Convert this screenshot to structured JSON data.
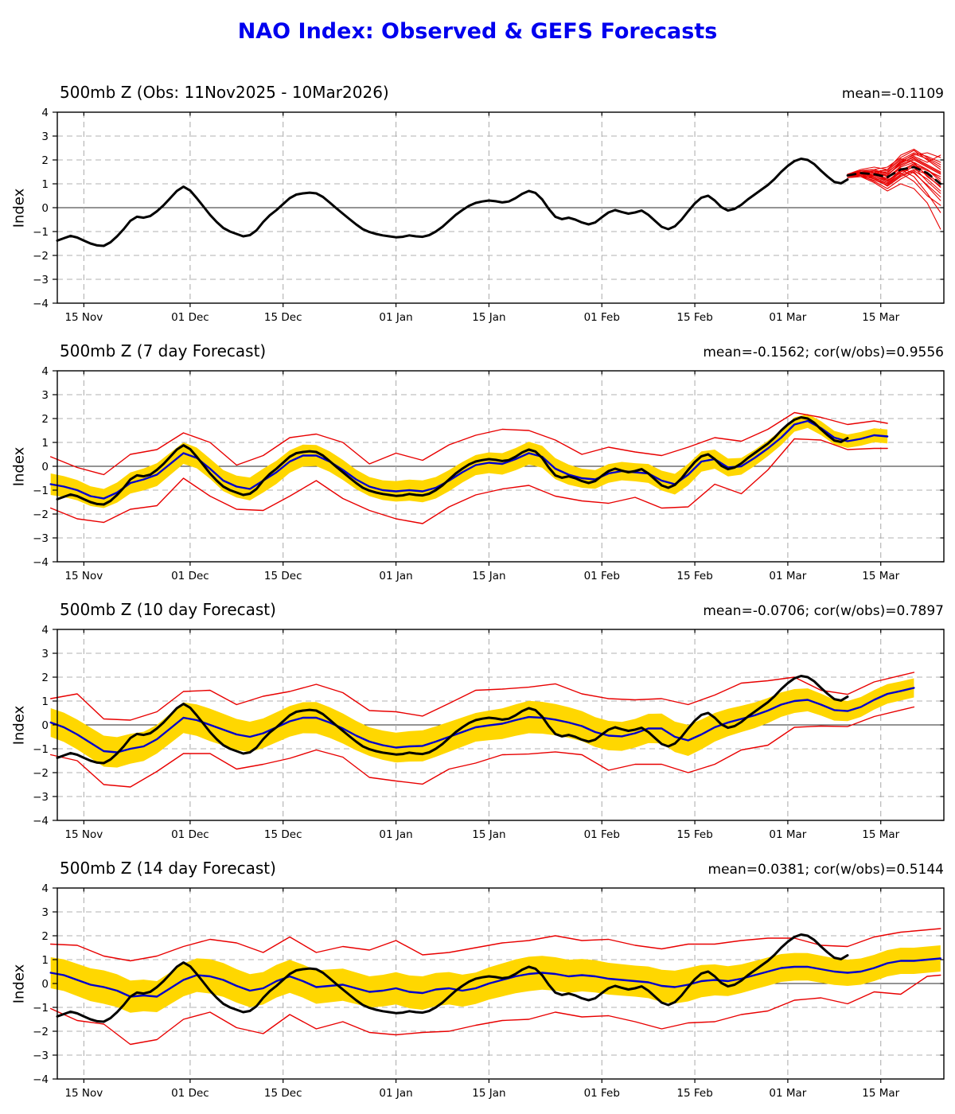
{
  "title": "NAO Index: Observed & GEFS Forecasts",
  "colors": {
    "title_blue": "#0000ee",
    "observed_black": "#000000",
    "forecast_mean_blue": "#0000cc",
    "spread_band_yellow": "#ffd700",
    "envelope_red": "#e80000",
    "grid_gray": "#b0b0b0",
    "zero_line": "#2a2a2a"
  },
  "axes": {
    "ylabel": "Index",
    "ylim": [
      -4,
      4
    ],
    "yticks": [
      {
        "v": 4,
        "label": "4"
      },
      {
        "v": 3,
        "label": "3"
      },
      {
        "v": 2,
        "label": "2"
      },
      {
        "v": 1,
        "label": "1"
      },
      {
        "v": 0,
        "label": "0"
      },
      {
        "v": -1,
        "label": "−1"
      },
      {
        "v": -2,
        "label": "−2"
      },
      {
        "v": -3,
        "label": "−3"
      },
      {
        "v": -4,
        "label": "−4"
      }
    ],
    "xlim": [
      0,
      133.5
    ],
    "x_unit": "days since 11 Nov 2025",
    "xticks": [
      {
        "day": 4,
        "label": "15 Nov"
      },
      {
        "day": 20,
        "label": "01 Dec"
      },
      {
        "day": 34,
        "label": "15 Dec"
      },
      {
        "day": 51,
        "label": "01 Jan"
      },
      {
        "day": 65,
        "label": "15 Jan"
      },
      {
        "day": 82,
        "label": "01 Feb"
      },
      {
        "day": 96,
        "label": "15 Feb"
      },
      {
        "day": 110,
        "label": "01 Mar"
      },
      {
        "day": 124,
        "label": "15 Mar"
      }
    ],
    "grid": "dashed"
  },
  "chart_data": {
    "type": "line",
    "observed": {
      "name": "Observed NAO index (black)",
      "x_start": 0,
      "x_step": 1,
      "values": [
        -1.38,
        -1.28,
        -1.18,
        -1.25,
        -1.38,
        -1.5,
        -1.58,
        -1.6,
        -1.45,
        -1.2,
        -0.9,
        -0.55,
        -0.38,
        -0.42,
        -0.35,
        -0.15,
        0.1,
        0.4,
        0.7,
        0.88,
        0.72,
        0.4,
        0.05,
        -0.3,
        -0.6,
        -0.85,
        -1.0,
        -1.1,
        -1.2,
        -1.15,
        -0.95,
        -0.6,
        -0.32,
        -0.1,
        0.15,
        0.4,
        0.55,
        0.6,
        0.63,
        0.6,
        0.45,
        0.22,
        -0.02,
        -0.25,
        -0.48,
        -0.7,
        -0.9,
        -1.02,
        -1.1,
        -1.16,
        -1.2,
        -1.24,
        -1.22,
        -1.16,
        -1.2,
        -1.22,
        -1.15,
        -1.0,
        -0.8,
        -0.55,
        -0.3,
        -0.1,
        0.08,
        0.2,
        0.26,
        0.3,
        0.27,
        0.22,
        0.26,
        0.4,
        0.58,
        0.7,
        0.62,
        0.35,
        -0.05,
        -0.38,
        -0.48,
        -0.42,
        -0.5,
        -0.62,
        -0.7,
        -0.62,
        -0.4,
        -0.2,
        -0.1,
        -0.18,
        -0.25,
        -0.2,
        -0.12,
        -0.3,
        -0.55,
        -0.8,
        -0.9,
        -0.78,
        -0.5,
        -0.15,
        0.18,
        0.42,
        0.5,
        0.3,
        0.02,
        -0.12,
        -0.05,
        0.12,
        0.35,
        0.55,
        0.75,
        0.95,
        1.2,
        1.5,
        1.75,
        1.95,
        2.05,
        2.0,
        1.82,
        1.55,
        1.3,
        1.08,
        1.02,
        1.18
      ]
    },
    "panels": [
      {
        "title": "500mb Z (Obs: 11Nov2025 - 10Mar2026)",
        "stats": "mean=-0.1109",
        "ensemble_mean_dashed": {
          "x_start": 119,
          "x_step": 2,
          "values": [
            1.35,
            1.45,
            1.4,
            1.28,
            1.6,
            1.7,
            1.45,
            1.0
          ]
        },
        "ensemble_members": {
          "x_start": 119,
          "x_step": 2,
          "series": [
            [
              1.35,
              1.5,
              1.45,
              1.5,
              1.9,
              2.1,
              1.8,
              1.5
            ],
            [
              1.3,
              1.4,
              1.2,
              1.0,
              1.5,
              1.7,
              1.1,
              0.6
            ],
            [
              1.4,
              1.55,
              1.6,
              1.7,
              2.1,
              2.4,
              2.0,
              1.6
            ],
            [
              1.3,
              1.35,
              1.1,
              0.8,
              1.2,
              1.5,
              0.9,
              0.3
            ],
            [
              1.35,
              1.45,
              1.5,
              1.3,
              1.7,
              1.9,
              1.6,
              1.2
            ],
            [
              1.4,
              1.5,
              1.3,
              1.1,
              1.6,
              1.3,
              0.6,
              -0.2
            ],
            [
              1.3,
              1.3,
              1.05,
              0.7,
              1.0,
              0.8,
              0.2,
              -0.9
            ],
            [
              1.35,
              1.5,
              1.55,
              1.45,
              1.95,
              2.2,
              2.3,
              2.1
            ],
            [
              1.4,
              1.6,
              1.7,
              1.6,
              2.2,
              2.45,
              2.1,
              1.8
            ],
            [
              1.25,
              1.3,
              1.15,
              0.95,
              1.35,
              1.6,
              1.4,
              1.0
            ],
            [
              1.35,
              1.4,
              1.35,
              1.2,
              1.75,
              2.0,
              1.7,
              1.4
            ],
            [
              1.3,
              1.45,
              1.4,
              1.15,
              1.45,
              1.1,
              0.5,
              0.1
            ],
            [
              1.4,
              1.5,
              1.45,
              1.35,
              1.85,
              2.15,
              1.9,
              2.2
            ],
            [
              1.35,
              1.35,
              1.2,
              1.0,
              1.4,
              1.75,
              1.55,
              1.3
            ],
            [
              1.3,
              1.4,
              1.5,
              1.55,
              2.0,
              2.3,
              2.15,
              1.9
            ],
            [
              1.4,
              1.45,
              1.25,
              0.9,
              1.3,
              1.55,
              1.2,
              0.7
            ],
            [
              1.35,
              1.55,
              1.6,
              1.4,
              1.8,
              2.05,
              1.75,
              1.45
            ],
            [
              1.3,
              1.35,
              1.25,
              1.05,
              1.55,
              1.85,
              1.35,
              0.85
            ],
            [
              1.4,
              1.5,
              1.35,
              1.25,
              1.65,
              1.45,
              0.95,
              0.45
            ],
            [
              1.35,
              1.45,
              1.55,
              1.35,
              1.9,
              2.25,
              2.05,
              1.7
            ],
            [
              1.3,
              1.4,
              1.3,
              1.15,
              1.5,
              1.8,
              1.6,
              1.1
            ],
            [
              1.4,
              1.55,
              1.5,
              1.6,
              2.05,
              1.9,
              1.3,
              0.9
            ]
          ]
        }
      },
      {
        "title": "500mb Z (7 day Forecast)",
        "stats": "mean=-0.1562; cor(w/obs)=0.9556",
        "mean": {
          "x_start": -1,
          "x_step": 2,
          "values": [
            -0.75,
            -0.85,
            -1.0,
            -1.25,
            -1.35,
            -1.1,
            -0.7,
            -0.55,
            -0.35,
            0.1,
            0.55,
            0.35,
            -0.1,
            -0.6,
            -0.85,
            -0.95,
            -0.6,
            -0.25,
            0.2,
            0.45,
            0.45,
            0.2,
            -0.15,
            -0.55,
            -0.85,
            -1.0,
            -1.05,
            -1.0,
            -1.05,
            -0.9,
            -0.6,
            -0.25,
            0.05,
            0.15,
            0.1,
            0.3,
            0.55,
            0.4,
            -0.1,
            -0.35,
            -0.5,
            -0.55,
            -0.3,
            -0.2,
            -0.25,
            -0.3,
            -0.6,
            -0.75,
            -0.35,
            0.2,
            0.3,
            -0.05,
            0.0,
            0.35,
            0.75,
            1.2,
            1.75,
            1.9,
            1.6,
            1.2,
            1.05,
            1.15,
            1.3,
            1.25
          ]
        },
        "band_hw": {
          "x_start": -1,
          "x_step": 8,
          "values": [
            0.45,
            0.4,
            0.48,
            0.42,
            0.5,
            0.44,
            0.4,
            0.46,
            0.42,
            0.48,
            0.4,
            0.38,
            0.45,
            0.35,
            0.3,
            0.28,
            0.3
          ]
        },
        "env_up": {
          "x_start": -1,
          "x_step": 4,
          "values": [
            1.15,
            0.95,
            1.0,
            1.2,
            1.05,
            0.85,
            1.1,
            0.9,
            1.05,
            1.0,
            0.9,
            1.15,
            0.95,
            1.6,
            1.3,
            1.5,
            1.25,
            1.45,
            0.95,
            1.2,
            1.0,
            1.1,
            0.85,
            1.05,
            1.15,
            0.9,
            1.05,
            0.8,
            0.5,
            0.45,
            0.7,
            0.6,
            0.5
          ]
        },
        "env_dn": {
          "x_start": -1,
          "x_step": 4,
          "values": [
            1.0,
            1.2,
            1.0,
            1.1,
            1.3,
            1.05,
            1.15,
            0.95,
            1.25,
            1.45,
            1.05,
            1.2,
            1.0,
            1.15,
            1.35,
            1.1,
            1.25,
            1.05,
            1.35,
            1.15,
            0.95,
            1.25,
            1.05,
            1.15,
            1.35,
            1.05,
            1.15,
            0.9,
            0.6,
            0.5,
            0.35,
            0.55,
            0.45
          ]
        }
      },
      {
        "title": "500mb Z (10 day Forecast)",
        "stats": "mean=-0.0706; cor(w/obs)=0.7897",
        "mean": {
          "x_start": -1,
          "x_step": 2,
          "values": [
            0.1,
            -0.1,
            -0.4,
            -0.75,
            -1.1,
            -1.15,
            -1.0,
            -0.9,
            -0.6,
            -0.15,
            0.3,
            0.2,
            0.0,
            -0.2,
            -0.4,
            -0.5,
            -0.35,
            -0.1,
            0.15,
            0.3,
            0.3,
            0.1,
            -0.15,
            -0.45,
            -0.7,
            -0.85,
            -0.95,
            -0.9,
            -0.88,
            -0.7,
            -0.5,
            -0.3,
            -0.1,
            -0.02,
            0.05,
            0.2,
            0.33,
            0.3,
            0.22,
            0.1,
            -0.05,
            -0.3,
            -0.45,
            -0.48,
            -0.35,
            -0.15,
            -0.15,
            -0.5,
            -0.65,
            -0.4,
            -0.1,
            0.1,
            0.25,
            0.4,
            0.6,
            0.85,
            1.0,
            1.05,
            0.85,
            0.62,
            0.58,
            0.75,
            1.05,
            1.3,
            1.42,
            1.55
          ]
        },
        "band_hw": {
          "x_start": -1,
          "x_step": 8,
          "values": [
            0.6,
            0.65,
            0.6,
            0.68,
            0.62,
            0.66,
            0.6,
            0.65,
            0.6,
            0.68,
            0.63,
            0.6,
            0.65,
            0.55,
            0.5,
            0.42,
            0.4
          ]
        },
        "env_up": {
          "x_start": -1,
          "x_step": 4,
          "values": [
            1.0,
            1.7,
            1.35,
            1.2,
            1.15,
            1.1,
            1.45,
            1.25,
            1.55,
            1.25,
            1.4,
            1.5,
            1.3,
            1.5,
            1.25,
            1.4,
            1.55,
            1.45,
            1.25,
            1.5,
            1.35,
            1.55,
            1.4,
            1.25,
            1.5,
            1.35,
            1.5,
            1.25,
            1.0,
            0.6,
            0.7,
            0.75,
            0.65
          ]
        },
        "env_dn": {
          "x_start": -1,
          "x_step": 4,
          "values": [
            1.35,
            1.1,
            1.4,
            1.6,
            1.35,
            1.5,
            1.2,
            1.45,
            1.3,
            1.55,
            1.35,
            1.2,
            1.5,
            1.4,
            1.6,
            1.35,
            1.5,
            1.3,
            1.55,
            1.35,
            1.2,
            1.45,
            1.3,
            1.5,
            1.35,
            1.55,
            1.3,
            1.45,
            1.1,
            0.9,
            0.65,
            0.7,
            0.8
          ]
        }
      },
      {
        "title": "500mb Z (14 day Forecast)",
        "stats": "mean=0.0381; cor(w/obs)=0.5144",
        "mean": {
          "x_start": -1,
          "x_step": 2,
          "values": [
            0.45,
            0.35,
            0.15,
            -0.05,
            -0.15,
            -0.3,
            -0.55,
            -0.5,
            -0.55,
            -0.2,
            0.15,
            0.35,
            0.3,
            0.15,
            -0.1,
            -0.3,
            -0.2,
            0.1,
            0.3,
            0.1,
            -0.15,
            -0.1,
            -0.05,
            -0.2,
            -0.35,
            -0.3,
            -0.2,
            -0.35,
            -0.4,
            -0.25,
            -0.2,
            -0.3,
            -0.2,
            0.0,
            0.15,
            0.3,
            0.4,
            0.45,
            0.4,
            0.3,
            0.35,
            0.3,
            0.2,
            0.15,
            0.1,
            0.05,
            -0.1,
            -0.15,
            -0.05,
            0.1,
            0.15,
            0.1,
            0.2,
            0.35,
            0.5,
            0.65,
            0.7,
            0.7,
            0.6,
            0.5,
            0.45,
            0.5,
            0.65,
            0.85,
            0.95,
            0.95,
            1.0,
            1.05
          ]
        },
        "band_hw": {
          "x_start": -1,
          "x_step": 8,
          "values": [
            0.65,
            0.7,
            0.65,
            0.72,
            0.68,
            0.7,
            0.65,
            0.7,
            0.66,
            0.72,
            0.68,
            0.65,
            0.7,
            0.6,
            0.58,
            0.55,
            0.55
          ]
        },
        "env_up": {
          "x_start": -1,
          "x_step": 4,
          "values": [
            1.2,
            1.45,
            1.3,
            1.5,
            1.7,
            1.4,
            1.55,
            1.8,
            1.5,
            1.65,
            1.45,
            1.6,
            1.75,
            2.0,
            1.6,
            1.5,
            1.7,
            1.55,
            1.4,
            1.6,
            1.45,
            1.65,
            1.5,
            1.55,
            1.7,
            1.5,
            1.6,
            1.4,
            1.2,
            1.0,
            1.1,
            1.3,
            1.2,
            1.25
          ]
        },
        "env_dn": {
          "x_start": -1,
          "x_step": 4,
          "values": [
            1.5,
            1.7,
            1.55,
            2.0,
            1.8,
            1.65,
            1.5,
            1.75,
            1.9,
            1.6,
            1.75,
            1.55,
            1.7,
            1.95,
            1.65,
            1.8,
            1.55,
            1.7,
            1.9,
            1.6,
            1.75,
            1.55,
            1.7,
            1.8,
            1.6,
            1.75,
            1.5,
            1.65,
            1.4,
            1.2,
            1.3,
            1.0,
            1.4,
            0.7
          ]
        }
      }
    ]
  }
}
